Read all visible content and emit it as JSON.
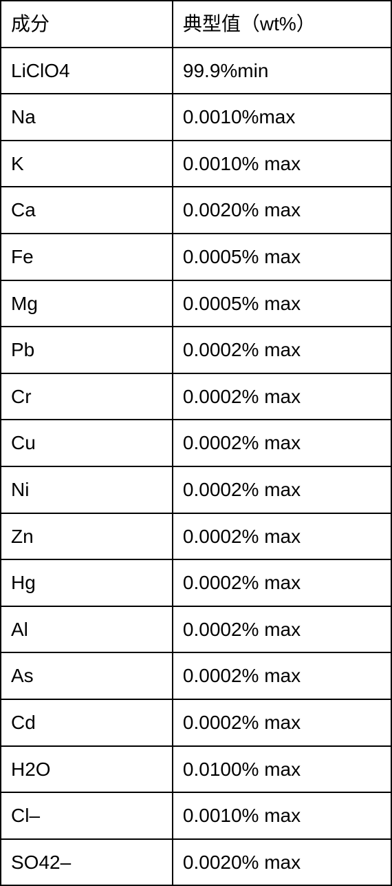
{
  "table": {
    "columns": [
      "成分",
      "典型值（wt%）"
    ],
    "rows": [
      [
        "LiClO4",
        "99.9%min"
      ],
      [
        "Na",
        "0.0010%max"
      ],
      [
        "K",
        "0.0010% max"
      ],
      [
        "Ca",
        "0.0020% max"
      ],
      [
        "Fe",
        "0.0005% max"
      ],
      [
        "Mg",
        "0.0005% max"
      ],
      [
        "Pb",
        "0.0002% max"
      ],
      [
        "Cr",
        "0.0002% max"
      ],
      [
        "Cu",
        "0.0002% max"
      ],
      [
        "Ni",
        "0.0002% max"
      ],
      [
        "Zn",
        "0.0002% max"
      ],
      [
        "Hg",
        "0.0002% max"
      ],
      [
        "Al",
        "0.0002% max"
      ],
      [
        "As",
        "0.0002% max"
      ],
      [
        "Cd",
        "0.0002% max"
      ],
      [
        "H2O",
        "0.0100% max"
      ],
      [
        "Cl–",
        "0.0010% max"
      ],
      [
        "SO42–",
        "0.0020% max"
      ]
    ],
    "border_color": "#000000",
    "text_color": "#000000",
    "background_color": "#ffffff",
    "font_size": 28,
    "cell_padding": 16
  }
}
